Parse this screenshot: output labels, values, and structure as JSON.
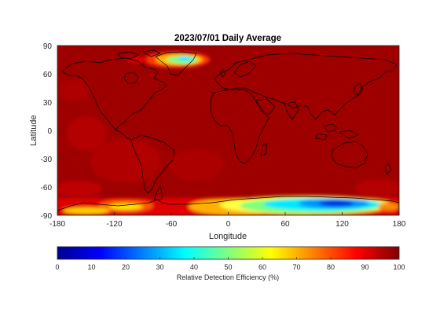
{
  "figure": {
    "title": "2023/07/01 Daily Average",
    "xlabel": "Longitude",
    "ylabel": "Latitude",
    "xlim": [
      -180,
      180
    ],
    "ylim": [
      -90,
      90
    ],
    "xticks": [
      "-180",
      "-120",
      "-60",
      "0",
      "60",
      "120",
      "180"
    ],
    "yticks": [
      "90",
      "60",
      "30",
      "0",
      "-30",
      "-60",
      "-90"
    ],
    "background_color": "#9e0000",
    "colormap": "jet"
  },
  "colorbar": {
    "label": "Relative Detection Efficiency (%)",
    "range": [
      0,
      100
    ],
    "ticks": [
      "0",
      "10",
      "20",
      "30",
      "40",
      "50",
      "60",
      "70",
      "80",
      "90",
      "100"
    ]
  }
}
